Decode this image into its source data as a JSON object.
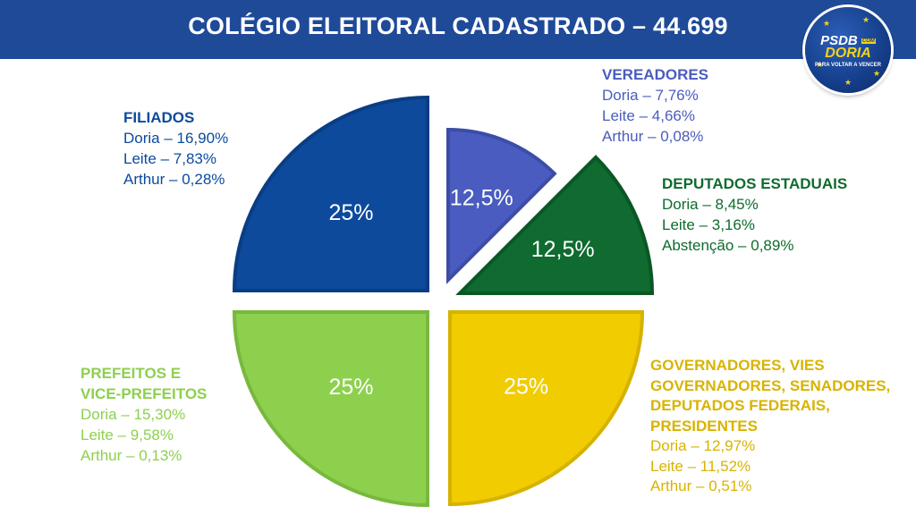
{
  "header": {
    "title": "COLÉGIO ELEITORAL CADASTRADO – 44.699"
  },
  "logo": {
    "line1": "PSDB",
    "tag": "COM",
    "line2": "DORIA",
    "slogan": "PARA VOLTAR A VENCER"
  },
  "colors": {
    "header": "#1f4a98",
    "filiados": "#0d4a9c",
    "vereadores": "#4a5cbf",
    "deputados": "#0f6b2f",
    "prefeitos": "#8dd04e",
    "governadores": "#f0cc00"
  },
  "chart_data": {
    "type": "pie",
    "title": "COLÉGIO ELEITORAL CADASTRADO – 44.699",
    "slices": [
      {
        "key": "vereadores",
        "label": "12,5%",
        "value": 12.5,
        "color": "#4a5cbf"
      },
      {
        "key": "deputados",
        "label": "12,5%",
        "value": 12.5,
        "color": "#0f6b2f"
      },
      {
        "key": "governadores",
        "label": "25%",
        "value": 25,
        "color": "#f0cc00"
      },
      {
        "key": "prefeitos",
        "label": "25%",
        "value": 25,
        "color": "#8dd04e"
      },
      {
        "key": "filiados",
        "label": "25%",
        "value": 25,
        "color": "#0d4a9c"
      }
    ]
  },
  "legend": {
    "filiados": {
      "title_lines": [
        "FILIADOS"
      ],
      "lines": [
        "Doria – 16,90%",
        "Leite – 7,83%",
        "Arthur – 0,28%"
      ]
    },
    "vereadores": {
      "title_lines": [
        "VEREADORES"
      ],
      "lines": [
        "Doria – 7,76%",
        "Leite – 4,66%",
        "Arthur – 0,08%"
      ]
    },
    "deputados": {
      "title_lines": [
        "DEPUTADOS ESTADUAIS"
      ],
      "lines": [
        "Doria – 8,45%",
        "Leite – 3,16%",
        "Abstenção – 0,89%"
      ]
    },
    "prefeitos": {
      "title_lines": [
        "PREFEITOS E",
        "VICE-PREFEITOS"
      ],
      "lines": [
        "Doria – 15,30%",
        "Leite – 9,58%",
        "Arthur – 0,13%"
      ]
    },
    "governadores": {
      "title_lines": [
        "GOVERNADORES, VIES",
        "GOVERNADORES, SENADORES,",
        "DEPUTADOS FEDERAIS,",
        "PRESIDENTES"
      ],
      "lines": [
        "Doria – 12,97%",
        "Leite – 11,52%",
        "Arthur – 0,51%"
      ]
    }
  }
}
